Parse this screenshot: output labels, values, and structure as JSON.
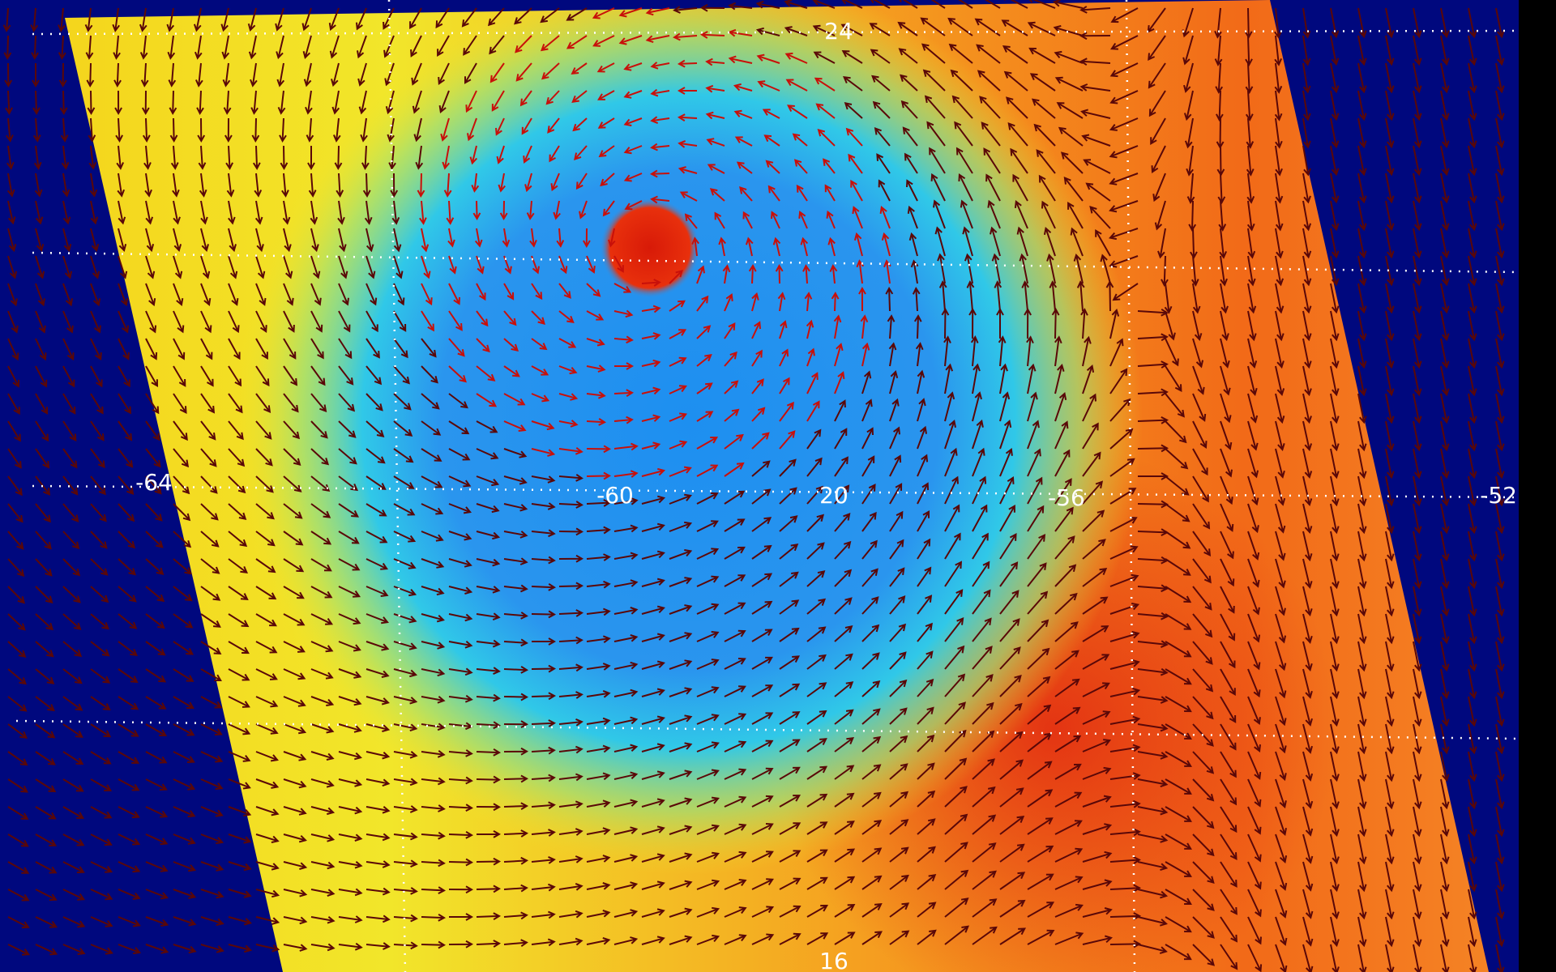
{
  "map": {
    "labels": {
      "lat_top": "24",
      "lon_1": "-64",
      "lon_2": "-60",
      "lat_mid": "20",
      "lon_3": "-56",
      "lon_4": "-52",
      "lat_bottom": "16"
    }
  }
}
